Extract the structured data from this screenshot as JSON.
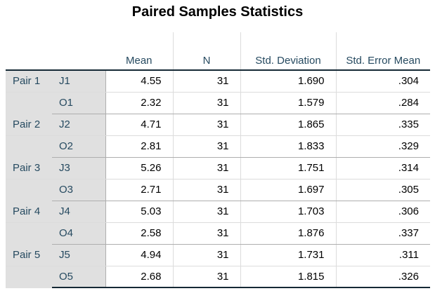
{
  "title": "Paired Samples Statistics",
  "headers": [
    "Mean",
    "N",
    "Std. Deviation",
    "Std. Error Mean"
  ],
  "rows": [
    {
      "pair": "Pair 1",
      "var": "J1",
      "mean": "4.55",
      "n": "31",
      "sd": "1.690",
      "se": ".304"
    },
    {
      "pair": "",
      "var": "O1",
      "mean": "2.32",
      "n": "31",
      "sd": "1.579",
      "se": ".284"
    },
    {
      "pair": "Pair 2",
      "var": "J2",
      "mean": "4.71",
      "n": "31",
      "sd": "1.865",
      "se": ".335"
    },
    {
      "pair": "",
      "var": "O2",
      "mean": "2.81",
      "n": "31",
      "sd": "1.833",
      "se": ".329"
    },
    {
      "pair": "Pair 3",
      "var": "J3",
      "mean": "5.26",
      "n": "31",
      "sd": "1.751",
      "se": ".314"
    },
    {
      "pair": "",
      "var": "O3",
      "mean": "2.71",
      "n": "31",
      "sd": "1.697",
      "se": ".305"
    },
    {
      "pair": "Pair 4",
      "var": "J4",
      "mean": "5.03",
      "n": "31",
      "sd": "1.703",
      "se": ".306"
    },
    {
      "pair": "",
      "var": "O4",
      "mean": "2.58",
      "n": "31",
      "sd": "1.876",
      "se": ".337"
    },
    {
      "pair": "Pair 5",
      "var": "J5",
      "mean": "4.94",
      "n": "31",
      "sd": "1.731",
      "se": ".311"
    },
    {
      "pair": "",
      "var": "O5",
      "mean": "2.68",
      "n": "31",
      "sd": "1.815",
      "se": ".326"
    }
  ],
  "colors": {
    "label": "#264a60",
    "stub_bg": "#e0e0e0",
    "rule": "#152935"
  }
}
